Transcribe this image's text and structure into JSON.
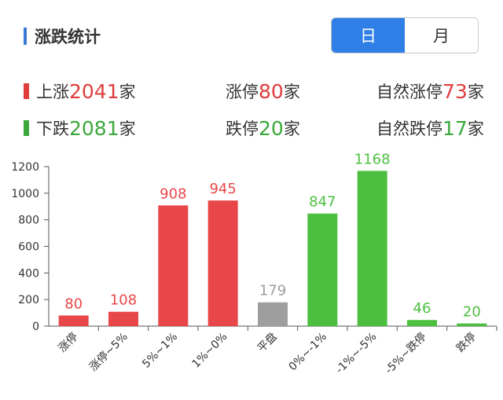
{
  "header": {
    "title": "涨跌统计"
  },
  "toggle": {
    "day": "日",
    "month": "月"
  },
  "stats": {
    "up": {
      "label": "上涨",
      "value": "2041",
      "unit": "家"
    },
    "down": {
      "label": "下跌",
      "value": "2081",
      "unit": "家"
    },
    "limit_up": {
      "label": "涨停",
      "value": "80",
      "unit": "家"
    },
    "limit_down": {
      "label": "跌停",
      "value": "20",
      "unit": "家"
    },
    "natural_limit_up": {
      "label": "自然涨停",
      "value": "73",
      "unit": "家"
    },
    "natural_limit_down": {
      "label": "自然跌停",
      "value": "17",
      "unit": "家"
    }
  },
  "colors": {
    "up": "#e8474a",
    "flat": "#9e9e9e",
    "down": "#4cbf3f",
    "accent": "#2f7fe6"
  },
  "chart_data": {
    "type": "bar",
    "categories": [
      "涨停",
      "涨停~5%",
      "5%~1%",
      "1%~0%",
      "平盘",
      "0%~-1%",
      "-1%~-5%",
      "-5%~跌停",
      "跌停"
    ],
    "values": [
      80,
      108,
      908,
      945,
      179,
      847,
      1168,
      46,
      20
    ],
    "bar_colors": [
      "up",
      "up",
      "up",
      "up",
      "flat",
      "down",
      "down",
      "down",
      "down"
    ],
    "yticks": [
      0,
      200,
      400,
      600,
      800,
      1000,
      1200
    ],
    "ylim": [
      0,
      1200
    ],
    "title": "",
    "xlabel": "",
    "ylabel": ""
  }
}
